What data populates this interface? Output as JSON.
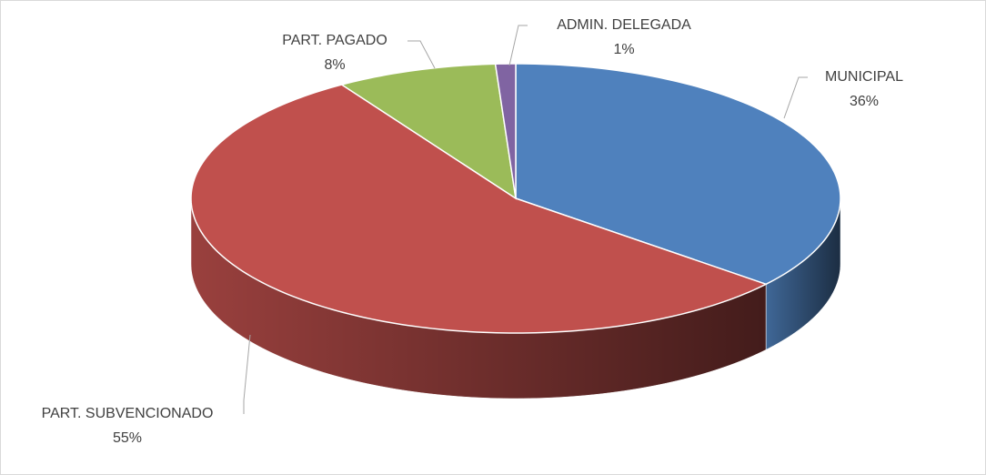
{
  "chart_data": {
    "type": "pie",
    "categories": [
      "MUNICIPAL",
      "PART. SUBVENCIONADO",
      "PART. PAGADO",
      "ADMIN. DELEGADA"
    ],
    "values": [
      36,
      55,
      8,
      1
    ],
    "value_labels": [
      "36%",
      "55%",
      "8%",
      "1%"
    ],
    "colors": [
      "#4f81bd",
      "#c0504d",
      "#9bbb59",
      "#8064a2"
    ]
  }
}
